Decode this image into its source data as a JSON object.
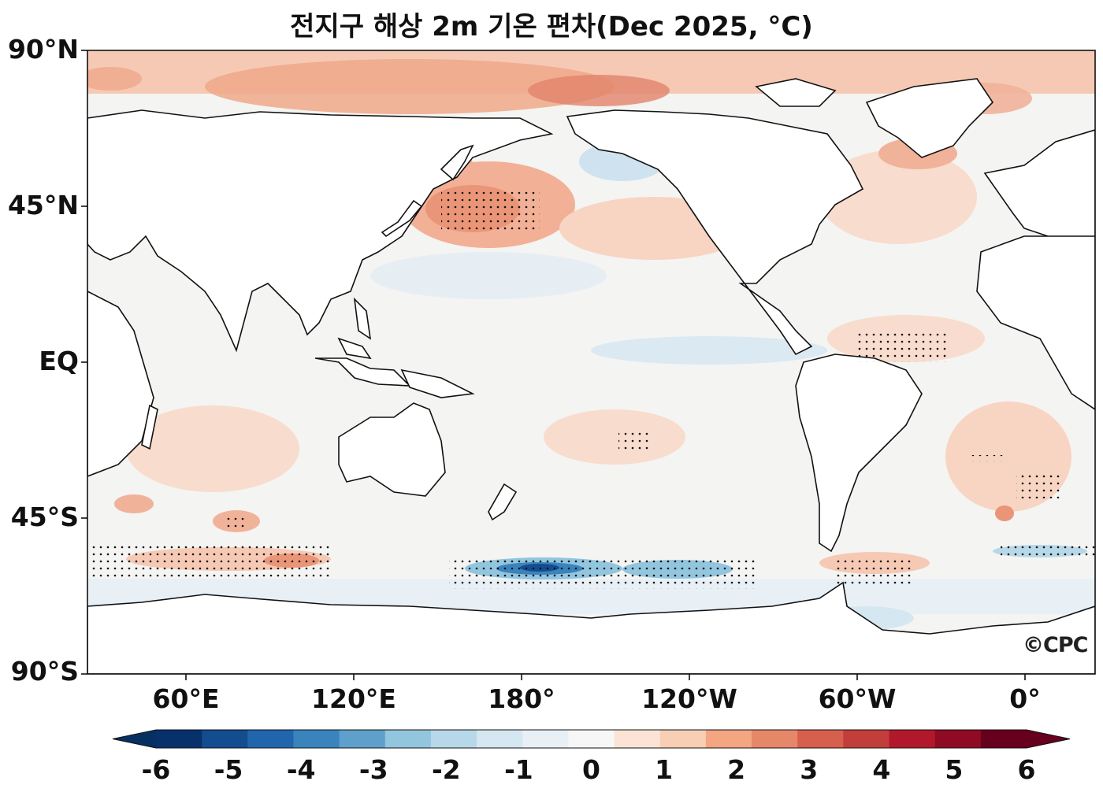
{
  "title": "전지구 해상 2m 기온 편차(Dec 2025, °C)",
  "watermark": "©CPC",
  "lat_labels": [
    "90°N",
    "45°N",
    "EQ",
    "45°S",
    "90°S"
  ],
  "lon_labels": [
    "60°E",
    "120°E",
    "180°",
    "120°W",
    "60°W",
    "0°"
  ],
  "colorbar": {
    "ticks": [
      "-6",
      "-5",
      "-4",
      "-3",
      "-2",
      "-1",
      "0",
      "1",
      "2",
      "3",
      "4",
      "5",
      "6"
    ],
    "colors": [
      "#08306b",
      "#134c8f",
      "#2166ac",
      "#3a84bd",
      "#5e9fcc",
      "#92c5de",
      "#b7d8e9",
      "#d5e7f1",
      "#e8f0f6",
      "#f7f7f7",
      "#fbe4d6",
      "#f8ceb4",
      "#f4a582",
      "#e7876a",
      "#d6604d",
      "#c23e3a",
      "#b2182b",
      "#8e0b23",
      "#67001f"
    ],
    "min_color": "#053061",
    "max_color": "#67001f"
  }
}
